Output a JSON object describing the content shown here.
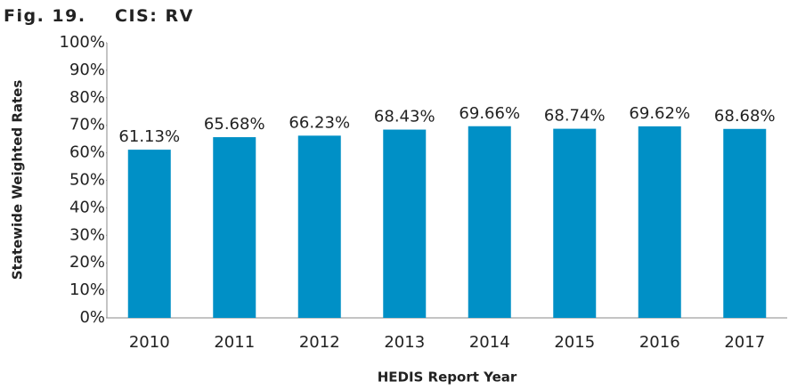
{
  "chart_data": {
    "type": "bar",
    "title": "Fig. 19.    CIS: RV",
    "x_label": "HEDIS Report Year",
    "y_label": "Statewide Weighted Rates",
    "categories": [
      "2010",
      "2011",
      "2012",
      "2013",
      "2014",
      "2015",
      "2016",
      "2017"
    ],
    "values": [
      61.13,
      65.68,
      66.23,
      68.43,
      69.66,
      68.74,
      69.62,
      68.68
    ],
    "value_labels": [
      "61.13%",
      "65.68%",
      "66.23%",
      "68.43%",
      "69.66%",
      "68.74%",
      "69.62%",
      "68.68%"
    ],
    "color": "#0090c6",
    "ylim": [
      0,
      100
    ],
    "yticks": [
      {
        "value": 0,
        "label": "0%"
      },
      {
        "value": 10,
        "label": "10%"
      },
      {
        "value": 20,
        "label": "20%"
      },
      {
        "value": 30,
        "label": "30%"
      },
      {
        "value": 40,
        "label": "40%"
      },
      {
        "value": 50,
        "label": "50%"
      },
      {
        "value": 60,
        "label": "60%"
      },
      {
        "value": 70,
        "label": "70%"
      },
      {
        "value": 80,
        "label": "80%"
      },
      {
        "value": 90,
        "label": "90%"
      },
      {
        "value": 100,
        "label": "100%"
      }
    ],
    "grid": false
  }
}
